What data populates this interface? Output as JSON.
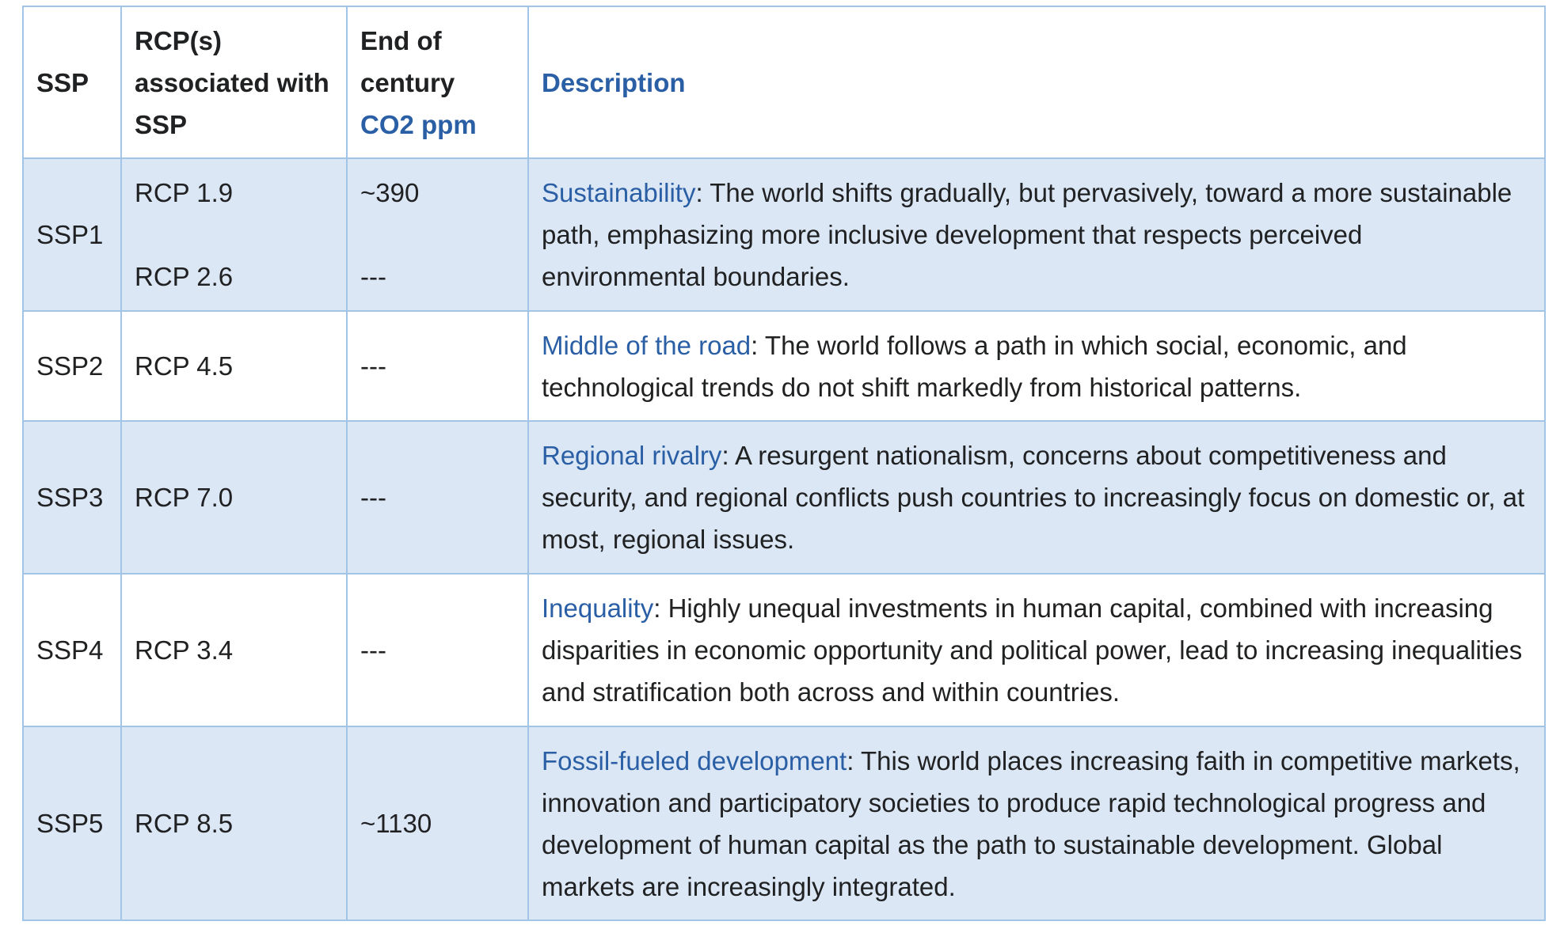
{
  "table": {
    "headers": {
      "ssp": "SSP",
      "rcp": "RCP(s) associated with SSP",
      "co2_prefix": "End of century",
      "co2_link": "CO2 ppm",
      "description": "Description"
    },
    "rows": [
      {
        "ssp": "SSP1",
        "rcp_top": "RCP 1.9",
        "rcp_bottom": "RCP 2.6",
        "co2_top": "~390",
        "co2_bottom": "---",
        "title": "Sustainability",
        "text": ": The world shifts gradually, but pervasively, toward a more sustainable path, emphasizing more inclusive development that respects perceived environmental boundaries."
      },
      {
        "ssp": "SSP2",
        "rcp": "RCP 4.5",
        "co2": "---",
        "title": "Middle of the road",
        "text": ": The world follows a path in which social, economic, and technological trends do not shift markedly from historical patterns."
      },
      {
        "ssp": "SSP3",
        "rcp": "RCP 7.0",
        "co2": "---",
        "title": "Regional rivalry",
        "text": ": A resurgent nationalism, concerns about competitiveness and security, and regional conflicts push countries to increasingly focus on domestic or, at most, regional issues."
      },
      {
        "ssp": "SSP4",
        "rcp": "RCP 3.4",
        "co2": "---",
        "title": "Inequality",
        "text": ": Highly unequal investments in human capital, combined with increasing disparities in economic opportunity and political power, lead to increasing inequalities and stratification both across and within countries."
      },
      {
        "ssp": "SSP5",
        "rcp": "RCP 8.5",
        "co2": "~1130",
        "title": "Fossil-fueled development",
        "text": ": This world places increasing faith in competitive markets, innovation and participatory societies to produce rapid technological progress and development of human capital as the path to sustainable development. Global markets are increasingly integrated."
      }
    ]
  },
  "colors": {
    "link": "#2a5fa5",
    "row_shade": "#dce7f5",
    "border": "#a2c4e6",
    "text": "#202122"
  }
}
